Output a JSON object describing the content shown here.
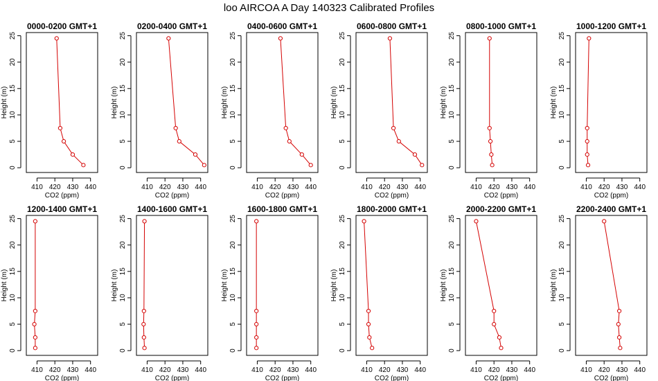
{
  "title": "loo AIRCOA A  Day 140323  Calibrated Profiles",
  "line_color": "#d40000",
  "chart_data": {
    "type": "line",
    "xlabel": "CO2 (ppm)",
    "ylabel": "Height (m)",
    "xlim": [
      404,
      444
    ],
    "ylim": [
      -0.9,
      25.6
    ],
    "xticks": [
      410,
      420,
      430,
      440
    ],
    "yticks": [
      0,
      5,
      10,
      15,
      20,
      25
    ],
    "heights": [
      0.5,
      2.5,
      5,
      7.5,
      24.5
    ],
    "grid": false,
    "panels": [
      {
        "title": "0000-0200 GMT+1",
        "co2": [
          436,
          430,
          425,
          423,
          421
        ]
      },
      {
        "title": "0200-0400 GMT+1",
        "co2": [
          442,
          437,
          428,
          426,
          422
        ]
      },
      {
        "title": "0400-0600 GMT+1",
        "co2": [
          440,
          435,
          428,
          426,
          423
        ]
      },
      {
        "title": "0600-0800 GMT+1",
        "co2": [
          441,
          437,
          428,
          425,
          423
        ]
      },
      {
        "title": "0800-1000 GMT+1",
        "co2": [
          419,
          418.5,
          418,
          417.5,
          417.5
        ]
      },
      {
        "title": "1000-1200 GMT+1",
        "co2": [
          411,
          410.5,
          410.5,
          410.5,
          411.5
        ]
      },
      {
        "title": "1200-1400 GMT+1",
        "co2": [
          409,
          409,
          408.5,
          409,
          409
        ]
      },
      {
        "title": "1400-1600 GMT+1",
        "co2": [
          408.5,
          408.2,
          408,
          408.2,
          408.5
        ]
      },
      {
        "title": "1600-1800 GMT+1",
        "co2": [
          409.5,
          409.5,
          409.5,
          409.5,
          409.5
        ]
      },
      {
        "title": "1800-2000 GMT+1",
        "co2": [
          413,
          411.5,
          411,
          411,
          408.5
        ]
      },
      {
        "title": "2000-2200 GMT+1",
        "co2": [
          424,
          423,
          420,
          420,
          410
        ]
      },
      {
        "title": "2200-2400 GMT+1",
        "co2": [
          429,
          428.5,
          428,
          428.5,
          420
        ]
      }
    ]
  }
}
